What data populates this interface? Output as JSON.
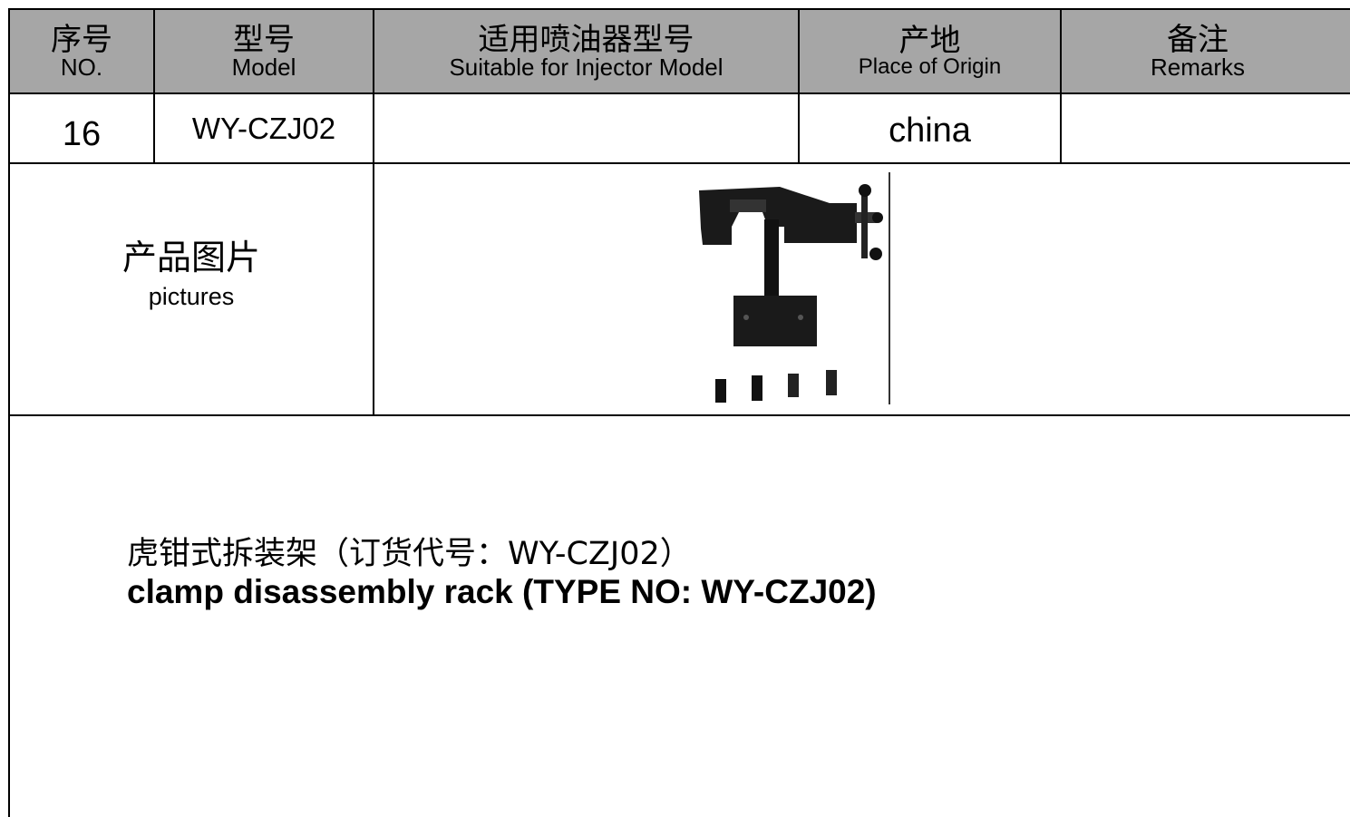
{
  "table": {
    "header": [
      {
        "zh": "序号",
        "en": "NO."
      },
      {
        "zh": "型号",
        "en": "Model"
      },
      {
        "zh": "适用喷油器型号",
        "en": "Suitable for Injector Model"
      },
      {
        "zh": "产地",
        "en": "Place of Origin"
      },
      {
        "zh": "备注",
        "en": "Remarks"
      }
    ],
    "row": {
      "no": "16",
      "model": "WY-CZJ02",
      "origin": "china"
    },
    "pictures": {
      "zh": "产品图片",
      "en": "pictures"
    }
  },
  "description": {
    "zh": "虎钳式拆装架（订货代号：WY-CZJ02）",
    "en": "clamp disassembly rack (TYPE NO:  WY-CZJ02)"
  }
}
